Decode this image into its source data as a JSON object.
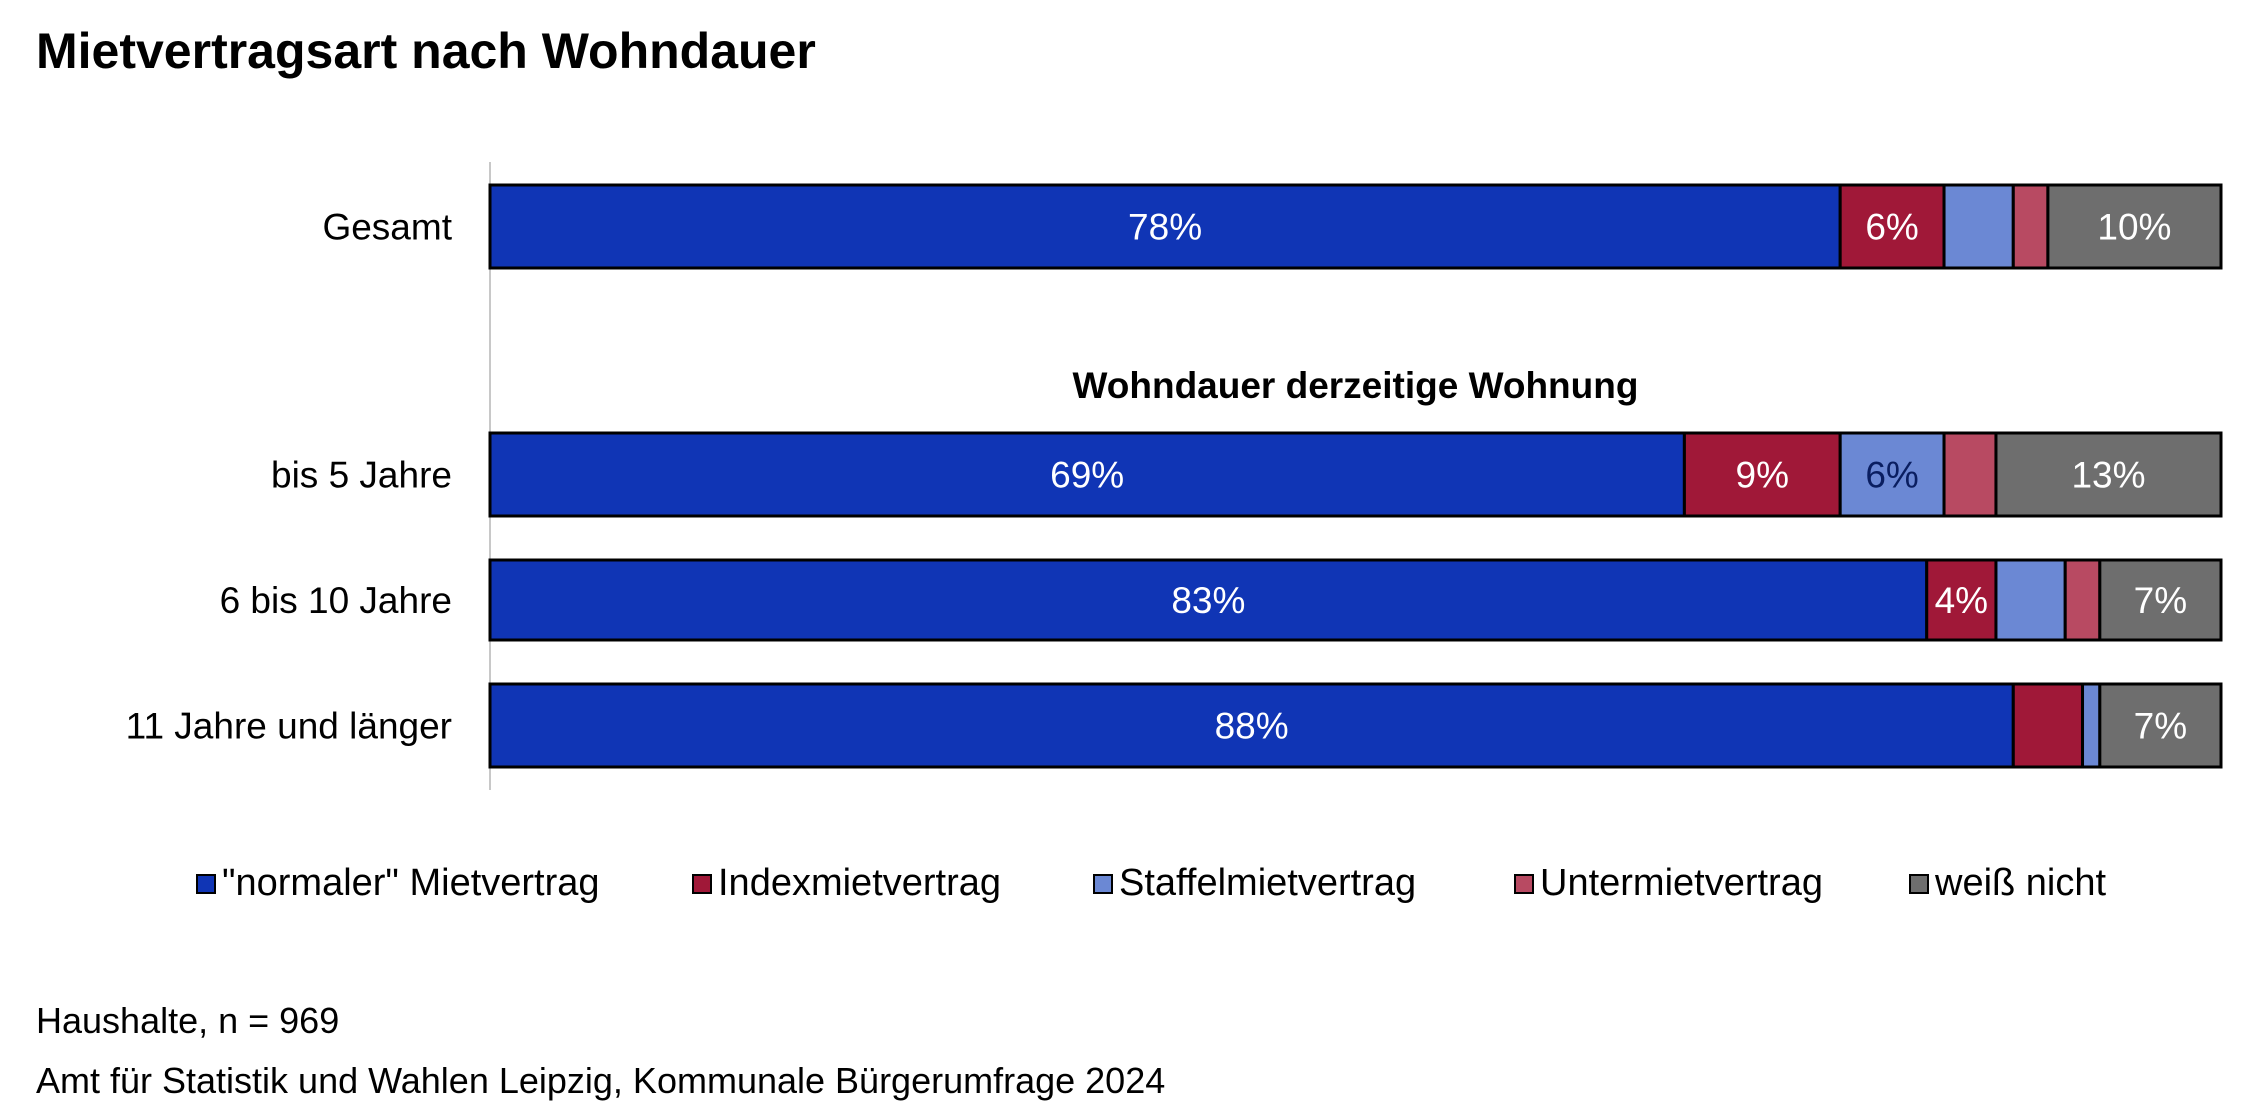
{
  "chart_data": {
    "type": "bar",
    "orientation": "horizontal",
    "stacked": true,
    "title": "Mietvertragsart nach Wohndauer",
    "group_label": "Wohndauer derzeitige Wohnung",
    "categories": [
      "Gesamt",
      "bis 5 Jahre",
      "6 bis 10 Jahre",
      "11 Jahre und länger"
    ],
    "series": [
      {
        "name": "\"normaler\" Mietvertrag",
        "color": "#1035b5",
        "label_color": "#ffffff",
        "values": [
          78,
          69,
          83,
          88
        ],
        "labels": [
          "78%",
          "69%",
          "83%",
          "88%"
        ]
      },
      {
        "name": "Indexmietvertrag",
        "color": "#a01838",
        "label_color": "#ffffff",
        "values": [
          6,
          9,
          4,
          4
        ],
        "labels": [
          "6%",
          "9%",
          "4%",
          ""
        ]
      },
      {
        "name": "Staffelmietvertrag",
        "color": "#6b88d4",
        "label_color": "#0a1e60",
        "values": [
          4,
          6,
          4,
          1
        ],
        "labels": [
          "",
          "6%",
          "",
          ""
        ]
      },
      {
        "name": "Untermietvertrag",
        "color": "#b84a62",
        "label_color": "#ffffff",
        "values": [
          2,
          3,
          2,
          0
        ],
        "labels": [
          "",
          "",
          "",
          ""
        ]
      },
      {
        "name": "weiß nicht",
        "color": "#6e6e6e",
        "label_color": "#ffffff",
        "values": [
          10,
          13,
          7,
          7
        ],
        "labels": [
          "10%",
          "13%",
          "7%",
          "7%"
        ]
      }
    ],
    "xlim": [
      0,
      100
    ],
    "grid": false,
    "legend_position": "bottom"
  },
  "footer": {
    "sample": "Haushalte, n = 969",
    "source": "Amt für Statistik und Wahlen Leipzig, Kommunale Bürgerumfrage 2024"
  }
}
